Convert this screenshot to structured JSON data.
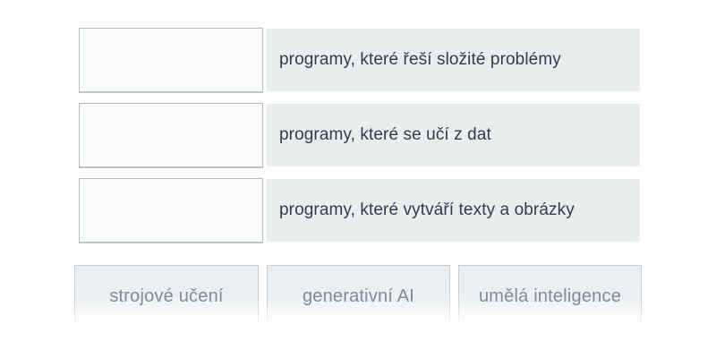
{
  "exercise": {
    "kind": "drag-and-drop-matching",
    "language": "cs"
  },
  "match_rows": [
    {
      "description": "programy, které řeší složité problémy"
    },
    {
      "description": "programy, které se učí z dat"
    },
    {
      "description": "programy, které vytváří texty a obrázky"
    }
  ],
  "answer_tiles": [
    {
      "label": "strojové učení"
    },
    {
      "label": "generativní AI"
    },
    {
      "label": "umělá inteligence"
    }
  ],
  "colors": {
    "page_background": "#ffffff",
    "description_panel_background": "#e8edee",
    "description_text": "#2e3d4f",
    "drop_zone_background": "#fafbfb",
    "drop_zone_border": "#b5bcc4",
    "tile_border": "#c7cdd4",
    "tile_background_top": "#e9edef",
    "tile_text": "#7e8b9c"
  }
}
